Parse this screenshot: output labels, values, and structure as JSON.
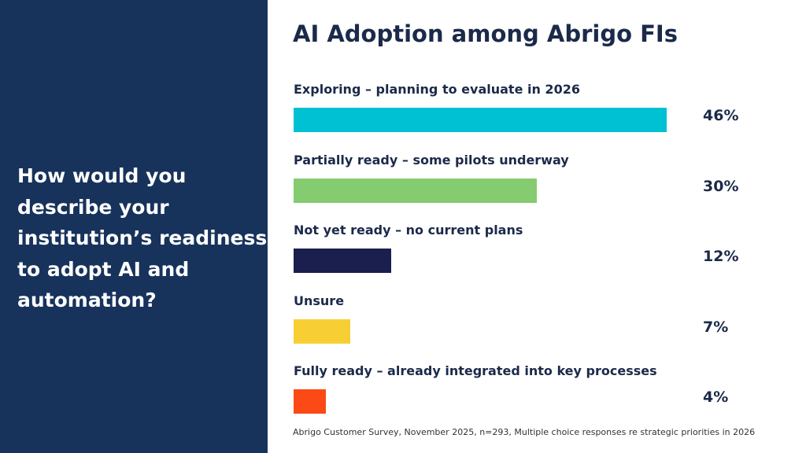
{
  "chart_data": {
    "type": "hbar",
    "title": "AI Adoption among Abrigo FIs",
    "subtitle": "How would you describe your institution’s readiness to adopt AI and automation?",
    "source": "Abrigo Customer Survey, November 2025, n=293, Multiple choice responses re strategic priorities in 2026",
    "categories": [
      "Exploring – planning to evaluate in 2026",
      "Partially ready – some pilots underway",
      "Not yet ready – no current plans",
      "Unsure",
      "Fully ready – already integrated into key processes"
    ],
    "values": [
      46,
      30,
      12,
      7,
      4
    ],
    "value_labels": [
      "46%",
      "30%",
      "12%",
      "7%",
      "4%"
    ],
    "colors": [
      "#00c1d4",
      "#84cc6f",
      "#1b1f4d",
      "#f7cf35",
      "#fb4a15"
    ]
  }
}
